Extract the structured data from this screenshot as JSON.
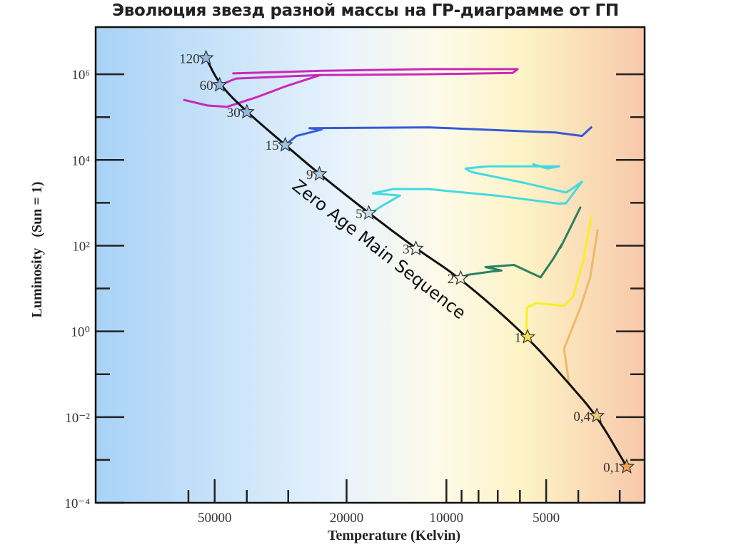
{
  "chart_data": {
    "type": "line",
    "title": "Эволюция звезд разной массы на ГР-диаграмме от ГП",
    "xlabel": "Temperature (Kelvin)",
    "ylabel": "Luminosity   (Sun = 1)",
    "x_scale": "log10, reversed",
    "y_scale": "log10",
    "xlim_logT": [
      5.058,
      3.402
    ],
    "ylim_logL": [
      -4,
      7.1
    ],
    "x_major_ticks": [
      {
        "T": 50000,
        "label": "50000"
      },
      {
        "T": 20000,
        "label": "20000"
      },
      {
        "T": 10000,
        "label": "10000"
      },
      {
        "T": 5000,
        "label": "5000"
      }
    ],
    "x_minor_ticks": [
      60000,
      40000,
      30000,
      9000,
      8000,
      7000,
      6000,
      4000,
      3000
    ],
    "y_major_ticks": [
      {
        "logL": 6,
        "label": "10⁶"
      },
      {
        "logL": 4,
        "label": "10⁴"
      },
      {
        "logL": 2,
        "label": "10²"
      },
      {
        "logL": 0,
        "label": "10⁰"
      },
      {
        "logL": -2,
        "label": "10⁻²"
      },
      {
        "logL": -4,
        "label": "10⁻⁴"
      }
    ],
    "y_minor_ticks": [
      5,
      3,
      1,
      -1,
      -3
    ],
    "annotation": "Zero Age Main Sequence",
    "zams_stars": [
      {
        "mass": "120",
        "logT": 4.725,
        "logL": 6.38,
        "color": "#8fb9de"
      },
      {
        "mass": "60",
        "logT": 4.684,
        "logL": 5.75,
        "color": "#8fb9de"
      },
      {
        "mass": "30",
        "logT": 4.602,
        "logL": 5.12,
        "color": "#8fb9de"
      },
      {
        "mass": "15",
        "logT": 4.486,
        "logL": 4.35,
        "color": "#9cc3e4"
      },
      {
        "mass": "9",
        "logT": 4.383,
        "logL": 3.67,
        "color": "#a9cdea"
      },
      {
        "mass": "5",
        "logT": 4.234,
        "logL": 2.76,
        "color": "#c4dcef"
      },
      {
        "mass": "3",
        "logT": 4.092,
        "logL": 1.93,
        "color": "#eef2f0"
      },
      {
        "mass": "2",
        "logT": 3.957,
        "logL": 1.24,
        "color": "#f5f2dc"
      },
      {
        "mass": "1",
        "logT": 3.755,
        "logL": -0.13,
        "color": "#f4e04a"
      },
      {
        "mass": "0,4",
        "logT": 3.546,
        "logL": -1.97,
        "color": "#f5c878"
      },
      {
        "mass": "0,1",
        "logT": 3.456,
        "logL": -3.16,
        "color": "#f0a050"
      }
    ],
    "zams_curve": [
      [
        4.725,
        6.38
      ],
      [
        4.684,
        5.75
      ],
      [
        4.602,
        5.12
      ],
      [
        4.486,
        4.35
      ],
      [
        4.383,
        3.67
      ],
      [
        4.234,
        2.76
      ],
      [
        4.092,
        1.93
      ],
      [
        3.957,
        1.24
      ],
      [
        3.755,
        -0.13
      ],
      [
        3.63,
        -1.22
      ],
      [
        3.546,
        -1.97
      ],
      [
        3.456,
        -3.16
      ]
    ],
    "tracks": [
      {
        "name": "60 Msun",
        "color": "#c81eb4",
        "points": [
          [
            4.684,
            5.75
          ],
          [
            4.634,
            5.9
          ],
          [
            4.381,
            5.98
          ],
          [
            4.054,
            6.0
          ],
          [
            3.8,
            6.03
          ],
          [
            3.785,
            6.12
          ],
          [
            4.054,
            6.12
          ],
          [
            4.376,
            6.08
          ],
          [
            4.643,
            6.02
          ]
        ]
      },
      {
        "name": "60 Msun (blue loop)",
        "color": "#c81eb4",
        "points": [
          [
            4.381,
            5.98
          ],
          [
            4.484,
            5.72
          ],
          [
            4.57,
            5.47
          ],
          [
            4.662,
            5.24
          ],
          [
            4.72,
            5.27
          ],
          [
            4.791,
            5.4
          ]
        ]
      },
      {
        "name": "15 Msun",
        "color": "#2a50d8",
        "points": [
          [
            4.486,
            4.35
          ],
          [
            4.452,
            4.56
          ],
          [
            4.376,
            4.71
          ],
          [
            4.413,
            4.74
          ],
          [
            4.054,
            4.76
          ],
          [
            3.671,
            4.64
          ],
          [
            3.591,
            4.56
          ],
          [
            3.563,
            4.76
          ]
        ]
      },
      {
        "name": "5 Msun",
        "color": "#3ad8e0",
        "points": [
          [
            4.232,
            2.74
          ],
          [
            4.198,
            2.91
          ],
          [
            4.14,
            3.17
          ],
          [
            4.172,
            3.19
          ],
          [
            4.222,
            3.22
          ],
          [
            4.161,
            3.32
          ],
          [
            4.054,
            3.32
          ],
          [
            3.839,
            3.16
          ],
          [
            3.66,
            2.98
          ],
          [
            3.639,
            2.99
          ],
          [
            3.591,
            3.49
          ],
          [
            3.624,
            3.31
          ],
          [
            3.639,
            3.24
          ],
          [
            3.768,
            3.47
          ],
          [
            3.925,
            3.72
          ],
          [
            3.942,
            3.8
          ],
          [
            3.875,
            3.85
          ],
          [
            3.66,
            3.85
          ],
          [
            3.695,
            3.8
          ],
          [
            3.738,
            3.9
          ]
        ]
      },
      {
        "name": "2 Msun",
        "color": "#1f7a5a",
        "points": [
          [
            3.961,
            1.24
          ],
          [
            3.935,
            1.32
          ],
          [
            3.86,
            1.4
          ],
          [
            3.834,
            1.42
          ],
          [
            3.882,
            1.5
          ],
          [
            3.796,
            1.55
          ],
          [
            3.716,
            1.26
          ],
          [
            3.677,
            1.7
          ],
          [
            3.652,
            2.03
          ],
          [
            3.656,
            1.95
          ],
          [
            3.624,
            2.45
          ],
          [
            3.596,
            2.89
          ]
        ]
      },
      {
        "name": "1 Msun",
        "color": "#f5ef1c",
        "points": [
          [
            3.757,
            -0.15
          ],
          [
            3.759,
            -0.07
          ],
          [
            3.757,
            0.55
          ],
          [
            3.731,
            0.66
          ],
          [
            3.645,
            0.6
          ],
          [
            3.617,
            0.83
          ],
          [
            3.587,
            1.65
          ],
          [
            3.563,
            2.66
          ]
        ]
      },
      {
        "name": "0.4 Msun",
        "color": "#eeb660",
        "points": [
          [
            3.63,
            -1.22
          ],
          [
            3.645,
            -0.4
          ],
          [
            3.624,
            0.0
          ],
          [
            3.596,
            0.55
          ],
          [
            3.566,
            1.26
          ],
          [
            3.544,
            2.36
          ]
        ]
      }
    ],
    "background_gradient": [
      "#a8d2f6",
      "#e8f3fc",
      "#fdfaea",
      "#fdf3c6",
      "#f7c8aa"
    ],
    "grid": false
  }
}
